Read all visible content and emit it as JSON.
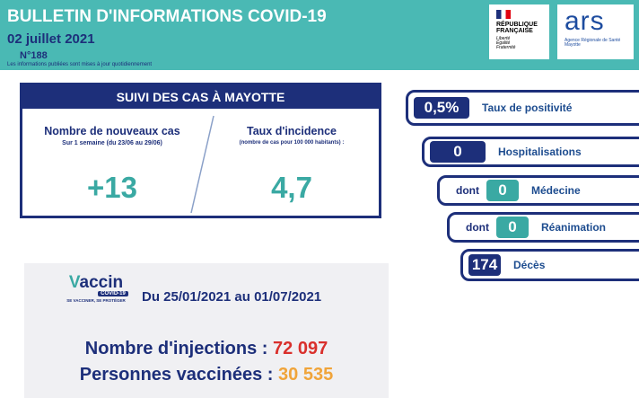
{
  "header": {
    "title": "BULLETIN D'INFORMATIONS COVID-19",
    "date": "02 juillet 2021",
    "number": "N°188",
    "note": "Les informations publiées sont mises à jour quotidiennement",
    "logo_rf": {
      "line1": "RÉPUBLIQUE",
      "line2": "FRANÇAISE",
      "motto": [
        "Liberté",
        "Égalité",
        "Fraternité"
      ]
    },
    "logo_ars": {
      "name": "ars",
      "subtitle": "Agence Régionale de Santé",
      "region": "Mayotte"
    }
  },
  "cases": {
    "title": "SUIVI DES CAS À MAYOTTE",
    "new_cases": {
      "label": "Nombre de nouveaux cas",
      "sub": "Sur 1 semaine (du 23/06 au 29/06)",
      "value": "+13"
    },
    "incidence": {
      "label": "Taux d'incidence",
      "sub": "(nombre de cas pour 100 000 habitants) :",
      "value": "4,7"
    }
  },
  "indicators": [
    {
      "value": "0,5%",
      "label": "Taux de positivité"
    },
    {
      "value": "0",
      "label": "Hospitalisations"
    },
    {
      "prefix": "dont",
      "value": "0",
      "label": "Médecine"
    },
    {
      "prefix": "dont",
      "value": "0",
      "label": "Réanimation"
    },
    {
      "value": "174",
      "label": "Décès"
    }
  ],
  "vaccine": {
    "logo": {
      "name": "accin",
      "sub": "COVID-19",
      "slogan": "SE VACCINER, SE PROTÉGER"
    },
    "period": "Du 25/01/2021 au 01/07/2021",
    "injections": {
      "label": "Nombre d'injections :",
      "value": "72 097"
    },
    "vaccinated": {
      "label": "Personnes vaccinées :",
      "value": "30 535"
    }
  }
}
